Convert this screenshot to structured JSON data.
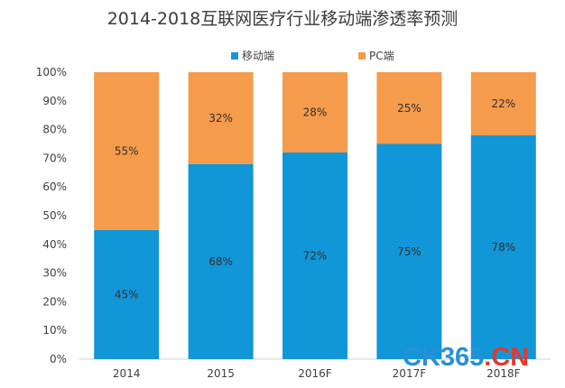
{
  "chart_data": {
    "type": "bar",
    "stacked": true,
    "title": "2014-2018互联网医疗行业移动端渗透率预测",
    "categories": [
      "2014",
      "2015",
      "2016F",
      "2017F",
      "2018F"
    ],
    "series": [
      {
        "name": "移动端",
        "values": [
          45,
          68,
          72,
          75,
          78
        ],
        "labels": [
          "45%",
          "68%",
          "72%",
          "75%",
          "78%"
        ],
        "color": "#1196d8"
      },
      {
        "name": "PC端",
        "values": [
          55,
          32,
          28,
          25,
          22
        ],
        "labels": [
          "55%",
          "32%",
          "28%",
          "25%",
          "22%"
        ],
        "color": "#f49b4c"
      }
    ],
    "yticks": [
      "0%",
      "10%",
      "20%",
      "30%",
      "40%",
      "50%",
      "60%",
      "70%",
      "80%",
      "90%",
      "100%"
    ],
    "ylim": [
      0,
      100
    ],
    "legend_position": "top",
    "grid": false
  },
  "watermark": {
    "main": "CK365",
    "dot": ".",
    "tld": "CN"
  }
}
